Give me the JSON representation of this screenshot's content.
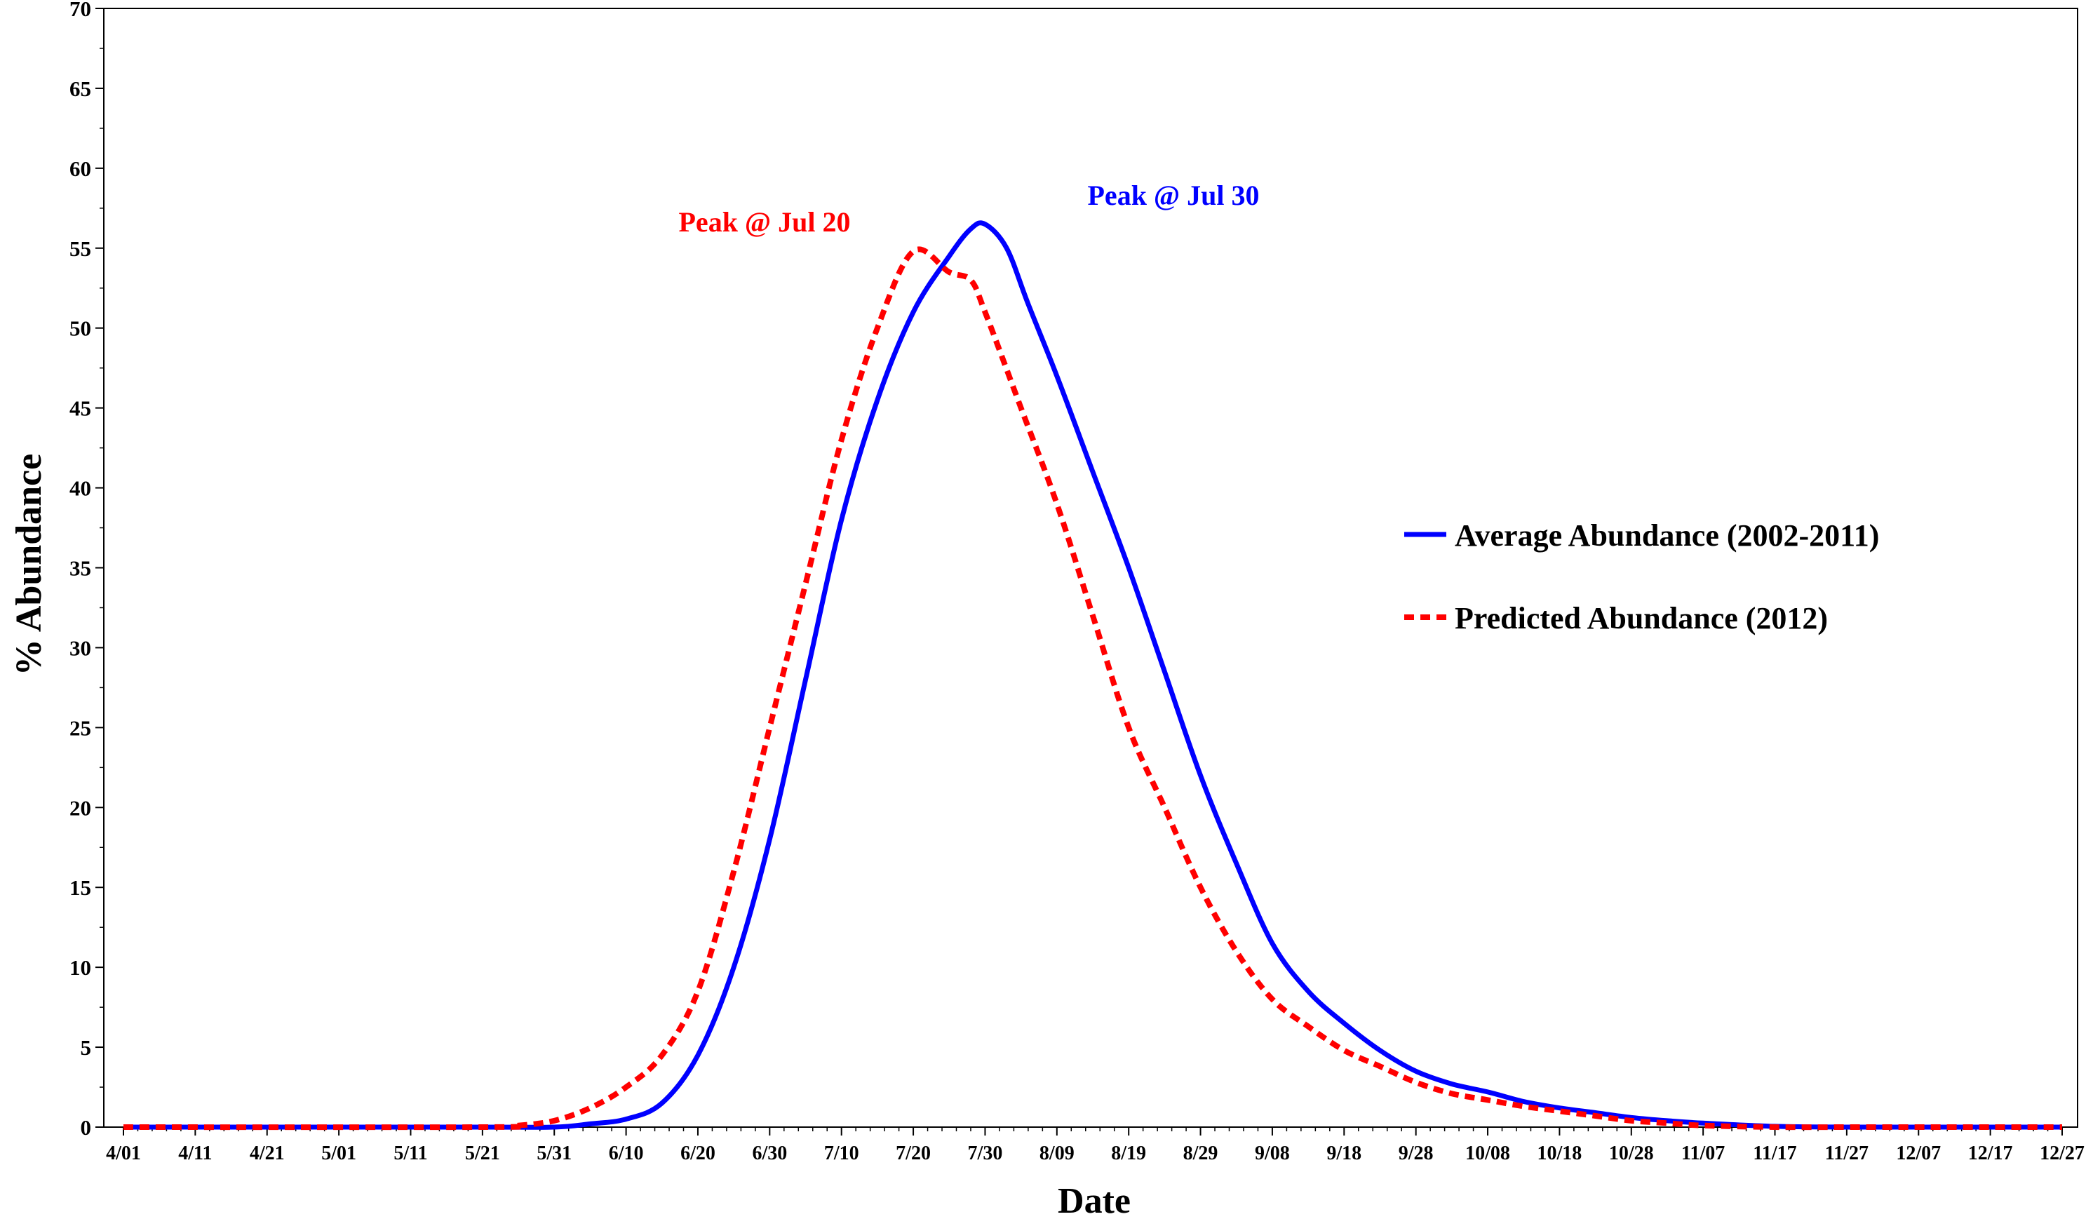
{
  "chart_data": {
    "type": "line",
    "title": "",
    "xlabel": "Date",
    "ylabel": "% Abundance",
    "x_tick_labels": [
      "4/01",
      "4/11",
      "4/21",
      "5/01",
      "5/11",
      "5/21",
      "5/31",
      "6/10",
      "6/20",
      "6/30",
      "7/10",
      "7/20",
      "7/30",
      "8/09",
      "8/19",
      "8/29",
      "9/08",
      "9/18",
      "9/28",
      "10/08",
      "10/18",
      "10/28",
      "11/07",
      "11/17",
      "11/27",
      "12/07",
      "12/17",
      "12/27"
    ],
    "y_ticks": [
      0,
      5,
      10,
      15,
      20,
      25,
      30,
      35,
      40,
      45,
      50,
      55,
      60,
      65,
      70
    ],
    "ylim": [
      0,
      70
    ],
    "grid": false,
    "legend_position": "right",
    "series": [
      {
        "name": "Average Abundance (2002-2011)",
        "color": "#0000ff",
        "style": "solid",
        "x": [
          "4/01",
          "5/21",
          "5/31",
          "6/05",
          "6/10",
          "6/15",
          "6/20",
          "6/25",
          "6/30",
          "7/05",
          "7/10",
          "7/15",
          "7/20",
          "7/25",
          "7/28",
          "7/30",
          "8/02",
          "8/05",
          "8/09",
          "8/14",
          "8/19",
          "8/24",
          "8/29",
          "9/03",
          "9/08",
          "9/13",
          "9/18",
          "9/23",
          "9/28",
          "10/03",
          "10/08",
          "10/13",
          "10/18",
          "10/23",
          "10/28",
          "11/02",
          "11/07",
          "11/17",
          "11/27",
          "12/07",
          "12/17",
          "12/27"
        ],
        "values": [
          0,
          0,
          0,
          0.2,
          0.5,
          1.5,
          4.5,
          10,
          18,
          28,
          38,
          45.5,
          51,
          54.5,
          56.2,
          56.5,
          55,
          51.5,
          47,
          41,
          35,
          28.5,
          22,
          16.5,
          11.5,
          8.5,
          6.5,
          4.8,
          3.5,
          2.7,
          2.2,
          1.6,
          1.2,
          0.9,
          0.6,
          0.4,
          0.25,
          0.05,
          0,
          0,
          0,
          0
        ]
      },
      {
        "name": "Predicted Abundance (2012)",
        "color": "#ff0000",
        "style": "dashed",
        "x": [
          "4/01",
          "5/21",
          "5/26",
          "5/31",
          "6/05",
          "6/10",
          "6/15",
          "6/20",
          "6/25",
          "6/30",
          "7/05",
          "7/10",
          "7/15",
          "7/20",
          "7/25",
          "7/28",
          "7/30",
          "8/04",
          "8/09",
          "8/14",
          "8/19",
          "8/24",
          "8/29",
          "9/03",
          "9/08",
          "9/13",
          "9/18",
          "9/23",
          "9/28",
          "10/03",
          "10/08",
          "10/13",
          "10/18",
          "10/23",
          "10/28",
          "11/02",
          "11/07",
          "11/17",
          "11/27",
          "12/07",
          "12/17",
          "12/27"
        ],
        "values": [
          0,
          0,
          0.1,
          0.4,
          1.2,
          2.5,
          4.5,
          8.5,
          16,
          25,
          34,
          43,
          50,
          54.8,
          53.5,
          53,
          51,
          45,
          39,
          32,
          25,
          20,
          15,
          11,
          8,
          6.3,
          4.8,
          3.8,
          2.8,
          2.1,
          1.7,
          1.3,
          1,
          0.7,
          0.4,
          0.25,
          0.1,
          0,
          0,
          0,
          0,
          0
        ]
      }
    ],
    "annotations": [
      {
        "text": "Peak @ Jul 20",
        "color": "#ff0000"
      },
      {
        "text": "Peak @ Jul 30",
        "color": "#0000ff"
      }
    ]
  }
}
